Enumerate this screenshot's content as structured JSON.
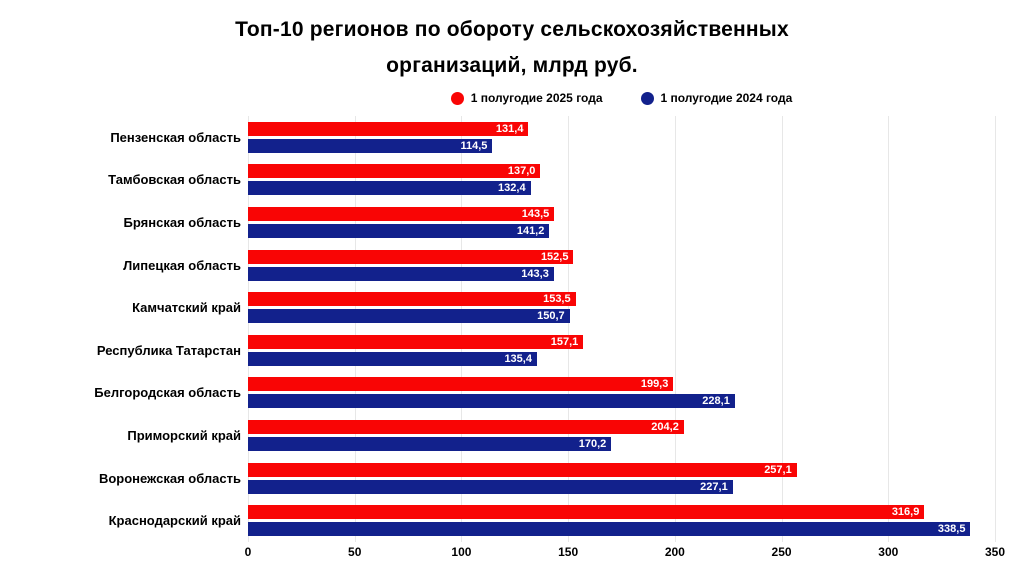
{
  "title": {
    "line1": "Топ-10 регионов по обороту сельскохозяйственных",
    "line2": "организаций, млрд руб."
  },
  "colors": {
    "series_2025": "#f90505",
    "series_2024": "#12218c",
    "gridline": "#e7e7e7",
    "value_label_text": "#ffffff"
  },
  "chart_data": {
    "type": "bar",
    "orientation": "horizontal",
    "title": "Топ-10 регионов по обороту сельскохозяйственных организаций, млрд руб.",
    "categories": [
      "Пензенская область",
      "Тамбовская область",
      "Брянская область",
      "Липецкая область",
      "Камчатский край",
      "Республика Татарстан",
      "Белгородская область",
      "Приморский край",
      "Воронежская область",
      "Краснодарский край"
    ],
    "series": [
      {
        "name": "1 полугодие 2025 года",
        "color": "#f90505",
        "values": [
          131.4,
          137.0,
          143.5,
          152.5,
          153.5,
          157.1,
          199.3,
          204.2,
          257.1,
          316.9
        ],
        "value_labels": [
          "131,4",
          "137,0",
          "143,5",
          "152,5",
          "153,5",
          "157,1",
          "199,3",
          "204,2",
          "257,1",
          "316,9"
        ]
      },
      {
        "name": "1 полугодие 2024 года",
        "color": "#12218c",
        "values": [
          114.5,
          132.4,
          141.2,
          143.3,
          150.7,
          135.4,
          228.1,
          170.2,
          227.1,
          338.5
        ],
        "value_labels": [
          "114,5",
          "132,4",
          "141,2",
          "143,3",
          "150,7",
          "135,4",
          "228,1",
          "170,2",
          "227,1",
          "338,5"
        ]
      }
    ],
    "xlim": [
      0,
      350
    ],
    "x_ticks": [
      "0",
      "50",
      "100",
      "150",
      "200",
      "250",
      "300",
      "350"
    ],
    "grid": true,
    "legend_position": "top"
  }
}
